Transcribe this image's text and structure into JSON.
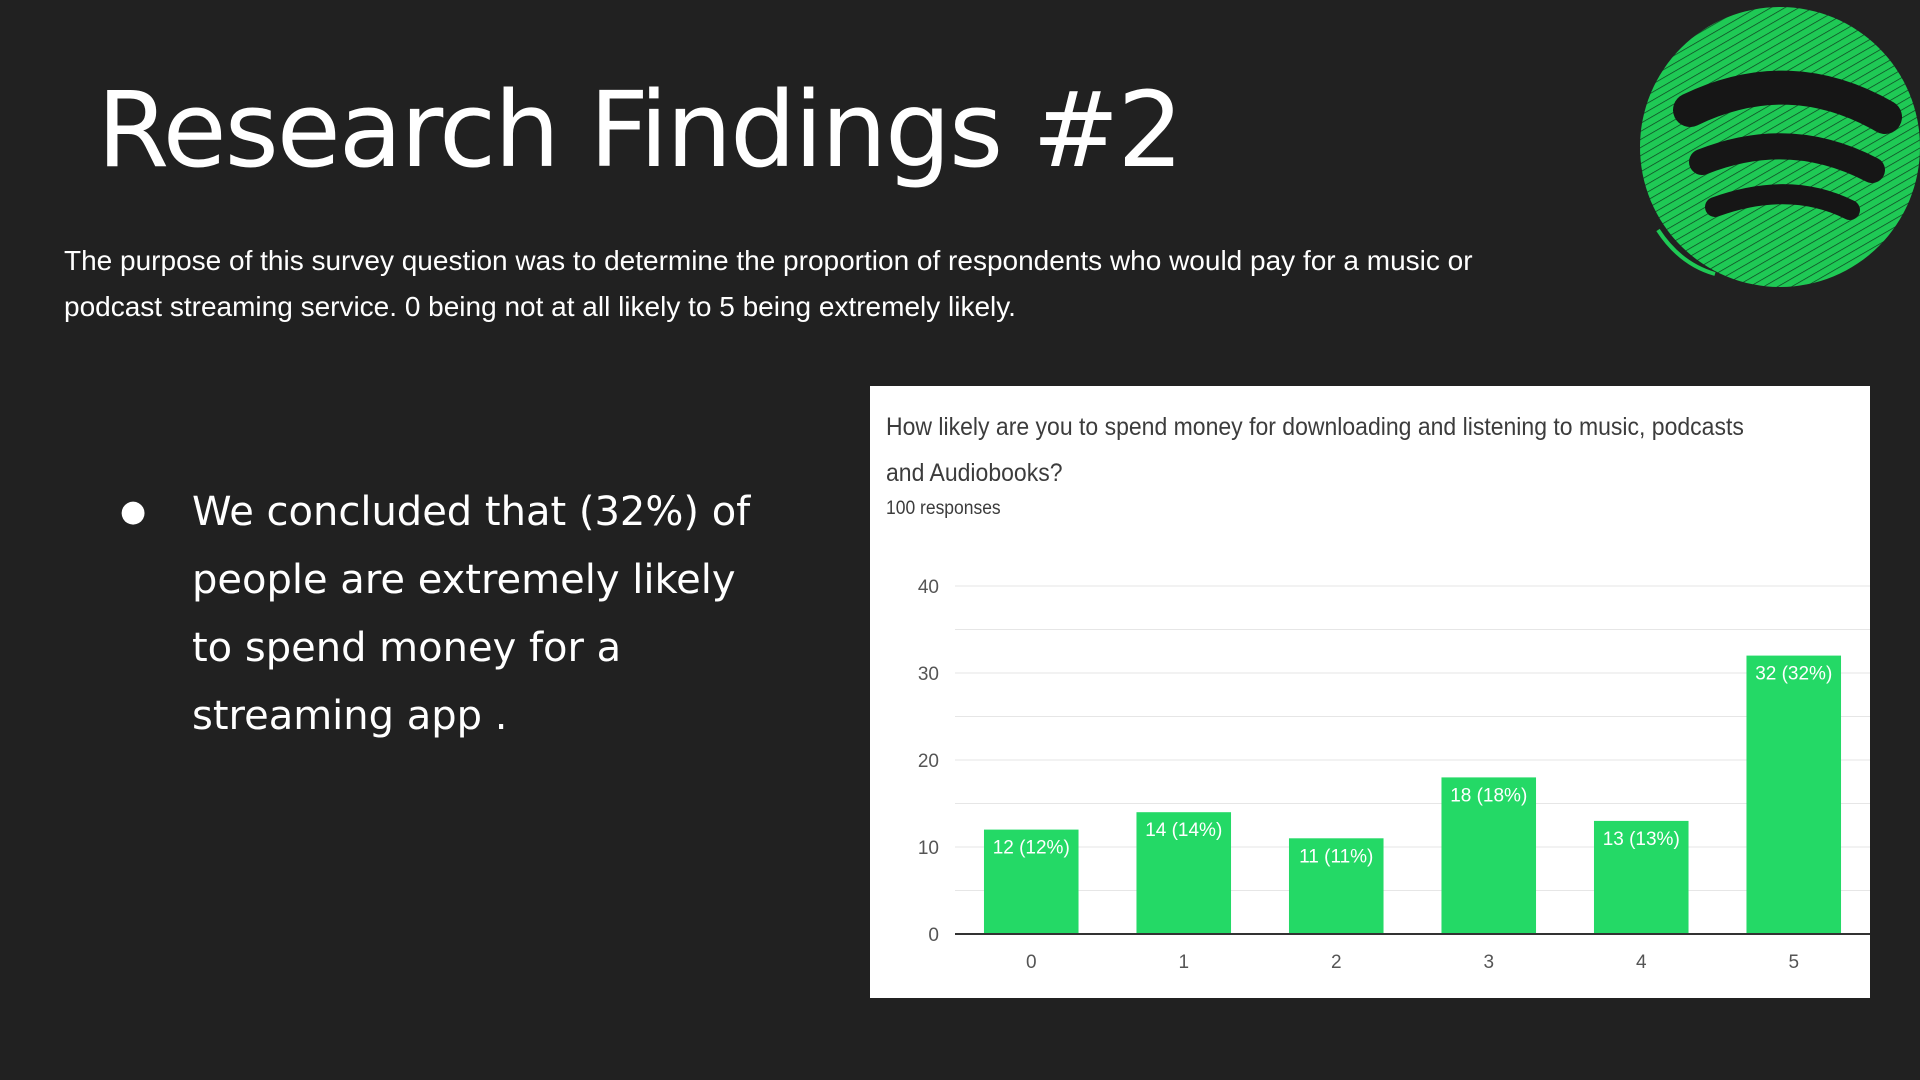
{
  "slide": {
    "title": "Research Findings #2",
    "intro": "The purpose of this survey question was to determine the proportion of respondents who would pay for a music or podcast streaming service. 0 being not at all likely to 5 being extremely likely.",
    "bullet_symbol": "●",
    "bullet": "We concluded that (32%) of people are extremely likely to spend money for a streaming app ."
  },
  "logo": {
    "icon": "spotify-logo-icon",
    "color": "#1ed760"
  },
  "colors": {
    "background": "#212121",
    "bar": "#24d966",
    "text": "#ffffff"
  },
  "chart_data": {
    "type": "bar",
    "title": "How likely are you to spend money for downloading and listening to music, podcasts and Audiobooks?",
    "subtitle": "100 responses",
    "categories": [
      "0",
      "1",
      "2",
      "3",
      "4",
      "5"
    ],
    "values": [
      12,
      14,
      11,
      18,
      13,
      32
    ],
    "data_labels": [
      "12 (12%)",
      "14 (14%)",
      "11 (11%)",
      "18 (18%)",
      "13 (13%)",
      "32 (32%)"
    ],
    "yticks": [
      0,
      10,
      20,
      30,
      40
    ],
    "ylim": [
      0,
      40
    ],
    "grid": true,
    "legend": "none"
  }
}
